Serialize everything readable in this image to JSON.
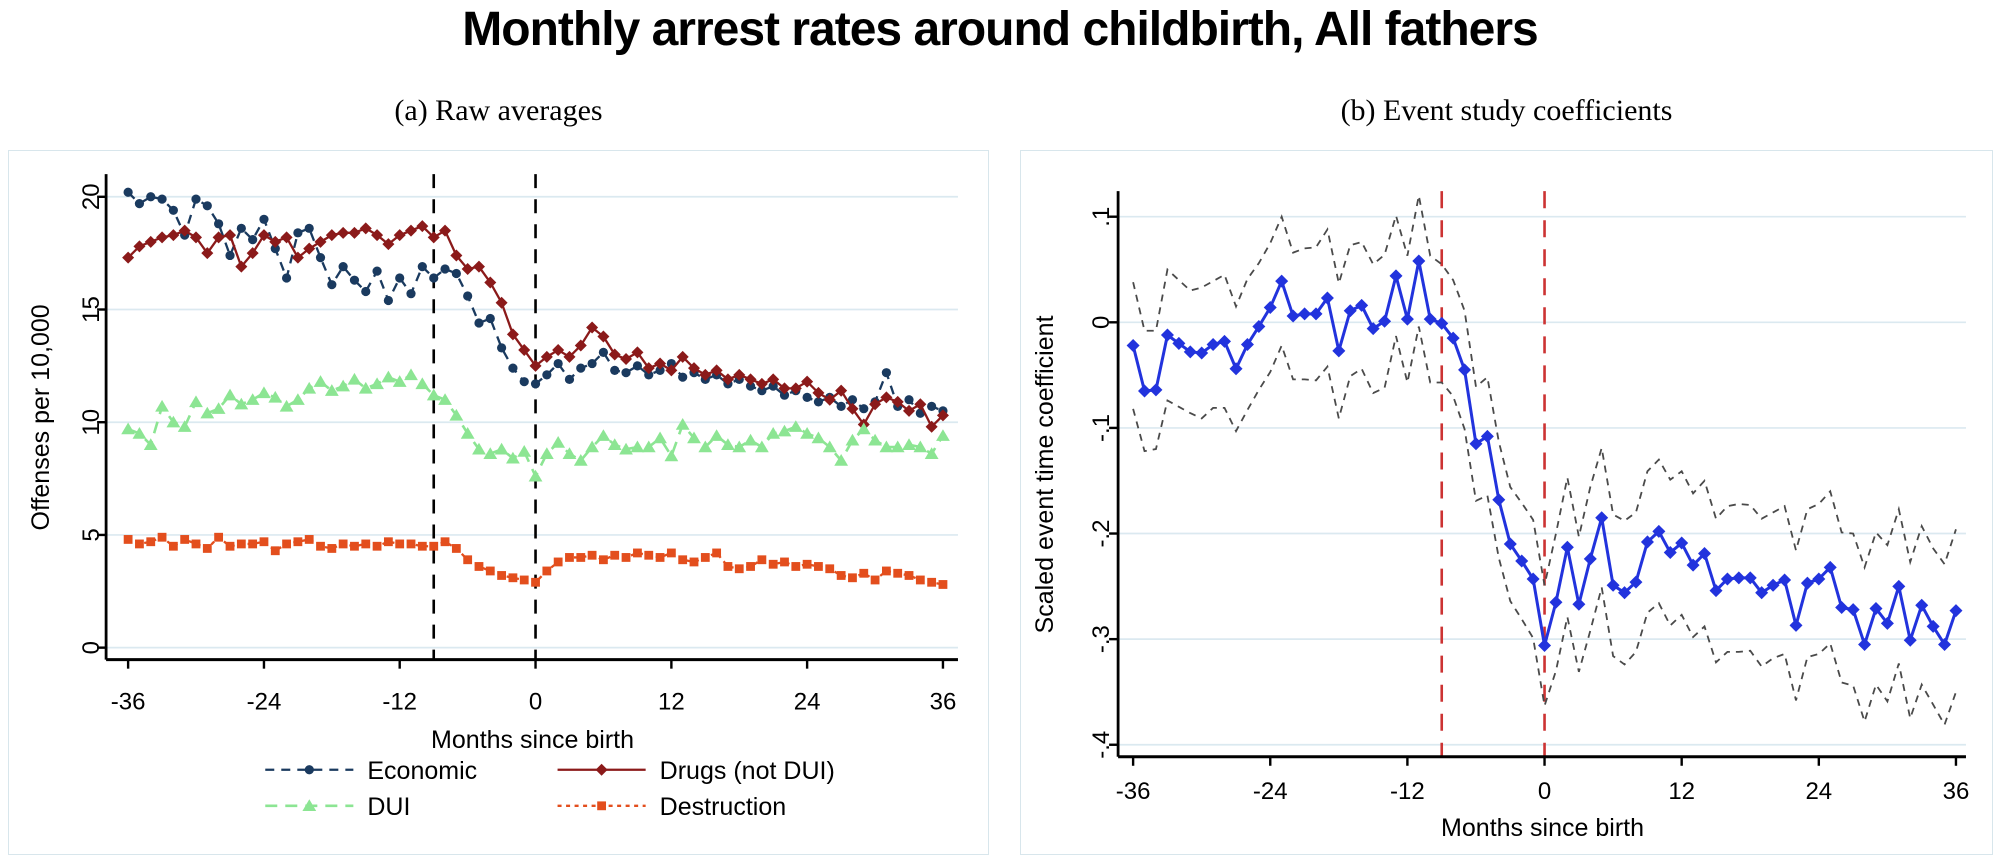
{
  "title": "Monthly arrest rates around childbirth, All fathers",
  "chart_data": [
    {
      "type": "line",
      "title": "(a) Raw averages",
      "xlabel": "Months since birth",
      "ylabel": "Offenses per 10,000",
      "xticks": [
        -36,
        -24,
        -12,
        0,
        12,
        24,
        36
      ],
      "yticks": [
        0,
        5,
        10,
        15,
        20
      ],
      "ytick_labels": [
        "0",
        "5",
        "10",
        "15",
        "20"
      ],
      "ylim": [
        0,
        21
      ],
      "grid": "on",
      "grid_color": "#dbe9f0",
      "legend_position": "bottom",
      "vlines": [
        {
          "x": -9,
          "color": "#000000",
          "dash": "14 11",
          "label": "conception-reference-line"
        },
        {
          "x": 0,
          "color": "#000000",
          "dash": "14 11",
          "label": "birth-reference-line"
        }
      ],
      "x": [
        -36,
        -35,
        -34,
        -33,
        -32,
        -31,
        -30,
        -29,
        -28,
        -27,
        -26,
        -25,
        -24,
        -23,
        -22,
        -21,
        -20,
        -19,
        -18,
        -17,
        -16,
        -15,
        -14,
        -13,
        -12,
        -11,
        -10,
        -9,
        -8,
        -7,
        -6,
        -5,
        -4,
        -3,
        -2,
        -1,
        0,
        1,
        2,
        3,
        4,
        5,
        6,
        7,
        8,
        9,
        10,
        11,
        12,
        13,
        14,
        15,
        16,
        17,
        18,
        19,
        20,
        21,
        22,
        23,
        24,
        25,
        26,
        27,
        28,
        29,
        30,
        31,
        32,
        33,
        34,
        35,
        36
      ],
      "series": [
        {
          "name": "Economic",
          "color": "#1a3a5f",
          "dash": "9 7",
          "marker": "circle",
          "width": 2.3,
          "msize": 4.6,
          "values": [
            20.2,
            19.7,
            20.0,
            19.9,
            19.4,
            18.3,
            19.9,
            19.6,
            18.8,
            17.4,
            18.6,
            18.1,
            19.0,
            17.7,
            16.4,
            18.4,
            18.6,
            17.3,
            16.1,
            16.9,
            16.3,
            15.8,
            16.7,
            15.4,
            16.4,
            15.7,
            16.9,
            16.4,
            16.8,
            16.6,
            15.6,
            14.4,
            14.6,
            13.3,
            12.4,
            11.8,
            11.7,
            12.1,
            12.6,
            11.9,
            12.4,
            12.6,
            13.1,
            12.3,
            12.2,
            12.5,
            12.1,
            12.3,
            12.6,
            12.0,
            12.2,
            11.9,
            12.1,
            11.7,
            11.9,
            11.6,
            11.4,
            11.6,
            11.2,
            11.4,
            11.1,
            10.9,
            11.1,
            10.7,
            11.0,
            10.6,
            10.9,
            12.2,
            10.7,
            11.0,
            10.4,
            10.7,
            10.5
          ]
        },
        {
          "name": "Drugs (not DUI)",
          "color": "#8b1a1a",
          "dash": "",
          "marker": "diamond",
          "width": 2.3,
          "msize": 6,
          "values": [
            17.3,
            17.8,
            18.0,
            18.2,
            18.3,
            18.5,
            18.2,
            17.5,
            18.2,
            18.3,
            16.9,
            17.5,
            18.3,
            18.0,
            18.2,
            17.3,
            17.7,
            18.0,
            18.3,
            18.4,
            18.4,
            18.6,
            18.3,
            17.9,
            18.3,
            18.5,
            18.7,
            18.2,
            18.5,
            17.4,
            16.8,
            16.9,
            16.2,
            15.3,
            13.9,
            13.2,
            12.5,
            12.9,
            13.2,
            12.9,
            13.4,
            14.2,
            13.8,
            13.0,
            12.8,
            13.1,
            12.4,
            12.6,
            12.3,
            12.9,
            12.4,
            12.1,
            12.3,
            11.9,
            12.1,
            11.9,
            11.7,
            11.9,
            11.5,
            11.5,
            11.8,
            11.3,
            11.0,
            11.4,
            10.6,
            9.9,
            10.8,
            11.1,
            10.9,
            10.5,
            10.8,
            9.8,
            10.3
          ]
        },
        {
          "name": "DUI",
          "color": "#8ce593",
          "dash": "12 8",
          "marker": "triangle",
          "width": 2.6,
          "msize": 6.5,
          "values": [
            9.7,
            9.5,
            9.0,
            10.7,
            10.0,
            9.8,
            10.9,
            10.4,
            10.6,
            11.2,
            10.8,
            11.0,
            11.3,
            11.1,
            10.7,
            11.0,
            11.5,
            11.8,
            11.4,
            11.6,
            11.9,
            11.5,
            11.7,
            12.0,
            11.8,
            12.1,
            11.7,
            11.2,
            11.0,
            10.3,
            9.5,
            8.8,
            8.6,
            8.8,
            8.4,
            8.7,
            7.6,
            8.6,
            9.1,
            8.6,
            8.3,
            8.9,
            9.4,
            9.0,
            8.8,
            8.9,
            8.9,
            9.3,
            8.5,
            9.9,
            9.3,
            8.9,
            9.4,
            9.0,
            8.9,
            9.2,
            8.9,
            9.5,
            9.6,
            9.8,
            9.5,
            9.3,
            8.9,
            8.3,
            9.2,
            9.7,
            9.2,
            8.9,
            8.9,
            9.0,
            8.9,
            8.6,
            9.4
          ]
        },
        {
          "name": "Destruction",
          "color": "#e34e1d",
          "dash": "4 4.5",
          "marker": "square",
          "width": 2.3,
          "msize": 4.4,
          "values": [
            4.8,
            4.6,
            4.7,
            4.9,
            4.5,
            4.8,
            4.6,
            4.4,
            4.9,
            4.5,
            4.6,
            4.6,
            4.7,
            4.3,
            4.6,
            4.7,
            4.8,
            4.5,
            4.4,
            4.6,
            4.5,
            4.6,
            4.5,
            4.7,
            4.6,
            4.6,
            4.5,
            4.5,
            4.7,
            4.4,
            3.9,
            3.6,
            3.4,
            3.2,
            3.1,
            3.0,
            2.9,
            3.4,
            3.8,
            4.0,
            4.0,
            4.1,
            3.9,
            4.1,
            4.0,
            4.2,
            4.1,
            4.0,
            4.2,
            3.9,
            3.8,
            4.0,
            4.2,
            3.6,
            3.5,
            3.6,
            3.9,
            3.7,
            3.8,
            3.6,
            3.7,
            3.6,
            3.5,
            3.2,
            3.1,
            3.3,
            3.0,
            3.4,
            3.3,
            3.2,
            3.0,
            2.9,
            2.8
          ]
        }
      ],
      "legend_rows": [
        [
          0,
          1
        ],
        [
          2,
          3
        ]
      ]
    },
    {
      "type": "line",
      "title": "(b) Event study coefficients",
      "xlabel": "Months since birth",
      "ylabel": "Scaled event time coefficient",
      "xticks": [
        -36,
        -24,
        -12,
        0,
        12,
        24,
        36
      ],
      "yticks": [
        0.1,
        0,
        -0.1,
        -0.2,
        -0.3,
        -0.4
      ],
      "ytick_labels": [
        ".1",
        "0",
        "-.1",
        "-.2",
        "-.3",
        "-.4"
      ],
      "ylim": [
        -0.42,
        0.13
      ],
      "grid": "on",
      "grid_color": "#dbe9f0",
      "legend_position": "none",
      "vlines": [
        {
          "x": -9,
          "color": "#cc3333",
          "dash": "17 12",
          "label": "conception-reference-line"
        },
        {
          "x": 0,
          "color": "#cc3333",
          "dash": "17 12",
          "label": "birth-reference-line"
        }
      ],
      "x": [
        -36,
        -35,
        -34,
        -33,
        -32,
        -31,
        -30,
        -29,
        -28,
        -27,
        -26,
        -25,
        -24,
        -23,
        -22,
        -21,
        -20,
        -19,
        -18,
        -17,
        -16,
        -15,
        -14,
        -13,
        -12,
        -11,
        -10,
        -9,
        -8,
        -7,
        -6,
        -5,
        -4,
        -3,
        -2,
        -1,
        0,
        1,
        2,
        3,
        4,
        5,
        6,
        7,
        8,
        9,
        10,
        11,
        12,
        13,
        14,
        15,
        16,
        17,
        18,
        19,
        20,
        21,
        22,
        23,
        24,
        25,
        26,
        27,
        28,
        29,
        30,
        31,
        32,
        33,
        34,
        35,
        36
      ],
      "series": [
        {
          "name": "ci-upper",
          "color": "#4a4a4a",
          "dash": "7 6",
          "marker": "none",
          "width": 1.8,
          "values": [
            0.038,
            -0.008,
            -0.008,
            0.05,
            0.04,
            0.03,
            0.033,
            0.039,
            0.045,
            0.015,
            0.041,
            0.056,
            0.075,
            0.1,
            0.066,
            0.07,
            0.071,
            0.088,
            0.037,
            0.073,
            0.076,
            0.055,
            0.064,
            0.101,
            0.063,
            0.12,
            0.063,
            0.055,
            0.04,
            0.011,
            -0.061,
            -0.052,
            -0.113,
            -0.156,
            -0.171,
            -0.187,
            -0.249,
            -0.2,
            -0.147,
            -0.203,
            -0.156,
            -0.119,
            -0.182,
            -0.188,
            -0.18,
            -0.141,
            -0.13,
            -0.149,
            -0.141,
            -0.162,
            -0.15,
            -0.186,
            -0.174,
            -0.172,
            -0.173,
            -0.186,
            -0.18,
            -0.174,
            -0.216,
            -0.177,
            -0.172,
            -0.16,
            -0.199,
            -0.2,
            -0.232,
            -0.199,
            -0.211,
            -0.177,
            -0.227,
            -0.193,
            -0.214,
            -0.229,
            -0.196
          ]
        },
        {
          "name": "ci-lower",
          "color": "#4a4a4a",
          "dash": "7 6",
          "marker": "none",
          "width": 1.8,
          "values": [
            -0.082,
            -0.122,
            -0.12,
            -0.074,
            -0.08,
            -0.086,
            -0.091,
            -0.081,
            -0.081,
            -0.103,
            -0.083,
            -0.064,
            -0.047,
            -0.022,
            -0.054,
            -0.054,
            -0.055,
            -0.042,
            -0.091,
            -0.051,
            -0.044,
            -0.067,
            -0.062,
            -0.013,
            -0.057,
            -0.004,
            -0.057,
            -0.057,
            -0.07,
            -0.101,
            -0.169,
            -0.164,
            -0.223,
            -0.264,
            -0.281,
            -0.299,
            -0.363,
            -0.33,
            -0.279,
            -0.331,
            -0.292,
            -0.251,
            -0.316,
            -0.324,
            -0.312,
            -0.275,
            -0.266,
            -0.287,
            -0.277,
            -0.298,
            -0.288,
            -0.322,
            -0.312,
            -0.312,
            -0.311,
            -0.326,
            -0.318,
            -0.314,
            -0.358,
            -0.317,
            -0.314,
            -0.304,
            -0.341,
            -0.344,
            -0.378,
            -0.343,
            -0.359,
            -0.323,
            -0.375,
            -0.343,
            -0.362,
            -0.381,
            -0.35
          ]
        },
        {
          "name": "Scaled event time coefficient",
          "color": "#2233dd",
          "dash": "",
          "marker": "diamond",
          "width": 3,
          "msize": 6.5,
          "values": [
            -0.022,
            -0.065,
            -0.064,
            -0.012,
            -0.02,
            -0.028,
            -0.029,
            -0.021,
            -0.018,
            -0.044,
            -0.021,
            -0.004,
            0.014,
            0.039,
            0.006,
            0.008,
            0.008,
            0.023,
            -0.027,
            0.011,
            0.016,
            -0.006,
            0.001,
            0.044,
            0.003,
            0.058,
            0.003,
            -0.001,
            -0.015,
            -0.045,
            -0.115,
            -0.108,
            -0.168,
            -0.21,
            -0.226,
            -0.243,
            -0.306,
            -0.265,
            -0.213,
            -0.267,
            -0.224,
            -0.185,
            -0.249,
            -0.256,
            -0.246,
            -0.208,
            -0.198,
            -0.218,
            -0.209,
            -0.23,
            -0.219,
            -0.254,
            -0.243,
            -0.242,
            -0.242,
            -0.256,
            -0.249,
            -0.244,
            -0.287,
            -0.247,
            -0.243,
            -0.232,
            -0.27,
            -0.272,
            -0.305,
            -0.271,
            -0.285,
            -0.25,
            -0.301,
            -0.268,
            -0.288,
            -0.305,
            -0.273
          ]
        }
      ],
      "legend_rows": []
    }
  ]
}
